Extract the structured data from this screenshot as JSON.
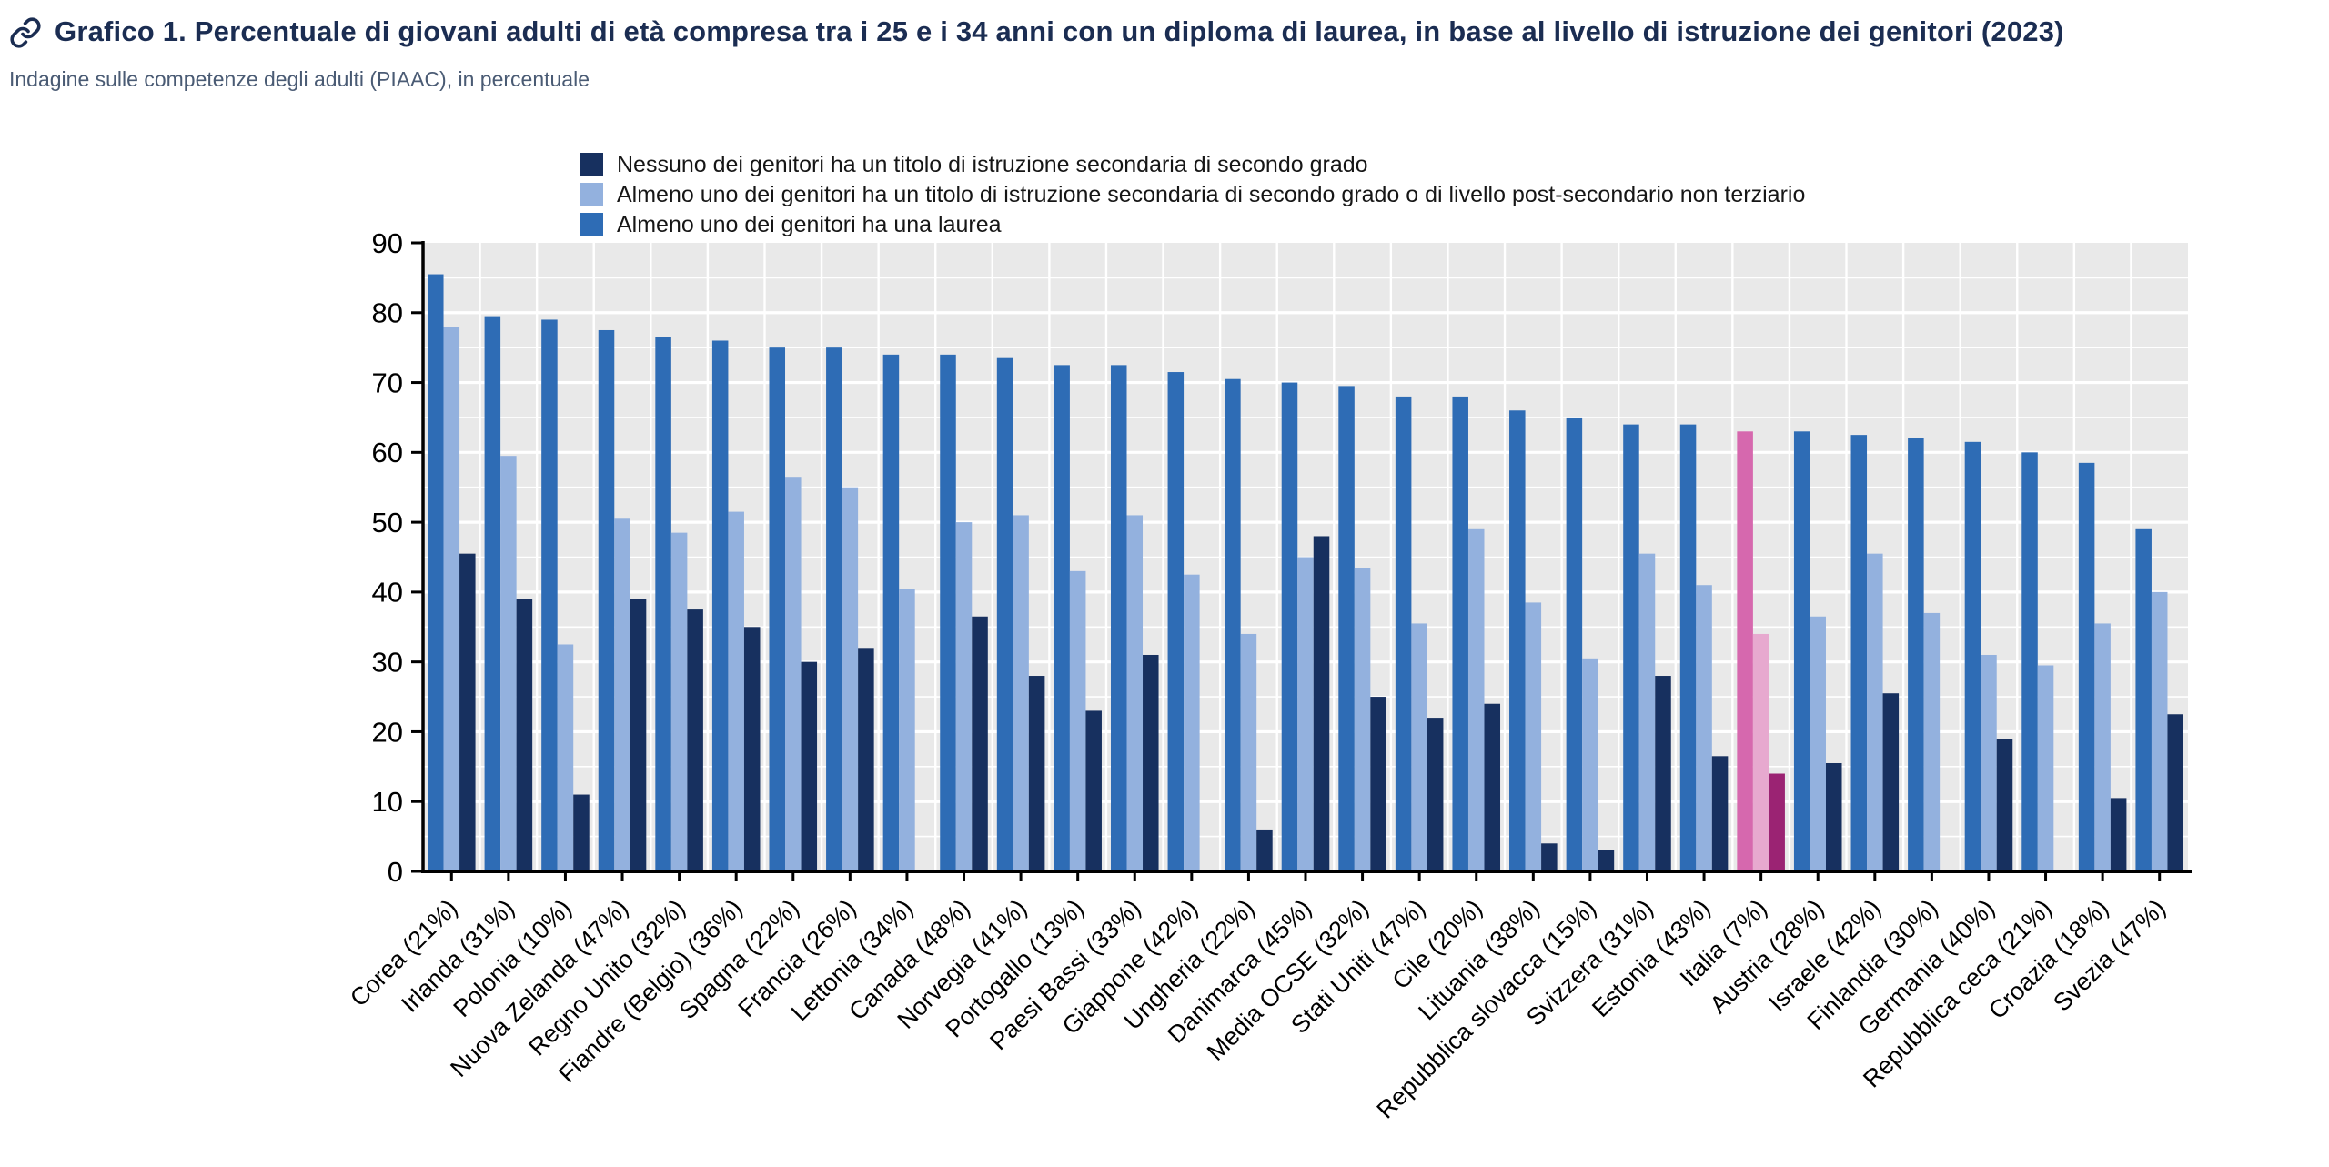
{
  "header": {
    "title": "Grafico 1. Percentuale di giovani adulti di età compresa tra i 25 e i 34 anni con un diploma di laurea, in base al livello di istruzione dei genitori (2023)",
    "subtitle": "Indagine sulle competenze degli adulti (PIAAC), in percentuale"
  },
  "legend": [
    {
      "label": "Nessuno dei genitori ha un titolo di istruzione secondaria di secondo grado",
      "color": "#17305f"
    },
    {
      "label": "Almeno uno dei genitori ha un titolo di istruzione secondaria di secondo grado o di livello post-secondario non terziario",
      "color": "#93b1de"
    },
    {
      "label": "Almeno uno dei genitori ha una laurea",
      "color": "#2e6cb5"
    }
  ],
  "chart_data": {
    "type": "bar",
    "title": "Grafico 1. Percentuale di giovani adulti di età compresa tra i 25 e i 34 anni con un diploma di laurea, in base al livello di istruzione dei genitori (2023)",
    "subtitle": "Indagine sulle competenze degli adulti (PIAAC), in percentuale",
    "xlabel": "",
    "ylabel": "",
    "ylim": [
      0,
      90
    ],
    "ytick_step": 10,
    "grid": true,
    "legend_position": "top",
    "plot_bg": "#e9e9e9",
    "grid_color": "#ffffff",
    "categories": [
      "Corea (21%)",
      "Irlanda (31%)",
      "Polonia (10%)",
      "Nuova Zelanda (47%)",
      "Regno Unito (32%)",
      "Fiandre (Belgio) (36%)",
      "Spagna (22%)",
      "Francia (26%)",
      "Lettonia (34%)",
      "Canada (48%)",
      "Norvegia (41%)",
      "Portogallo (13%)",
      "Paesi Bassi (33%)",
      "Giappone (42%)",
      "Ungheria (22%)",
      "Danimarca (45%)",
      "Media OCSE (32%)",
      "Stati Uniti (47%)",
      "Cile (20%)",
      "Lituania (38%)",
      "Repubblica slovacca (15%)",
      "Svizzera (31%)",
      "Estonia (43%)",
      "Italia (7%)",
      "Austria (28%)",
      "Israele (42%)",
      "Finlandia (30%)",
      "Germania (40%)",
      "Repubblica ceca (21%)",
      "Croazia (18%)",
      "Svezia (47%)"
    ],
    "series": [
      {
        "name": "Almeno uno dei genitori ha una laurea",
        "color": "#2e6cb5",
        "values": [
          85.5,
          79.5,
          79,
          77.5,
          76.5,
          76,
          75,
          75,
          74,
          74,
          73.5,
          72.5,
          72.5,
          71.5,
          70.5,
          70,
          69.5,
          68,
          68,
          66,
          65,
          64,
          64,
          63,
          63,
          62.5,
          62,
          61.5,
          60,
          58.5,
          49
        ]
      },
      {
        "name": "Almeno uno dei genitori ha un titolo di istruzione secondaria di secondo grado o di livello post-secondario non terziario",
        "color": "#93b1de",
        "values": [
          78,
          59.5,
          32.5,
          50.5,
          48.5,
          51.5,
          56.5,
          55,
          40.5,
          50,
          51,
          43,
          51,
          42.5,
          34,
          45,
          43.5,
          35.5,
          49,
          38.5,
          30.5,
          45.5,
          41,
          34,
          36.5,
          45.5,
          37,
          31,
          29.5,
          35.5,
          40
        ]
      },
      {
        "name": "Nessuno dei genitori ha un titolo di istruzione secondaria di secondo grado",
        "color": "#17305f",
        "values": [
          45.5,
          39,
          11,
          39,
          37.5,
          35,
          30,
          32,
          null,
          36.5,
          28,
          23,
          31,
          null,
          6,
          48,
          25,
          22,
          24,
          4,
          3,
          28,
          16.5,
          14,
          15.5,
          25.5,
          null,
          19,
          null,
          10.5,
          22.5
        ]
      }
    ],
    "highlight": {
      "category": "Italia (7%)",
      "index": 23,
      "series_colors": [
        "#d668ae",
        "#e7a9cf",
        "#9b2373"
      ]
    }
  }
}
